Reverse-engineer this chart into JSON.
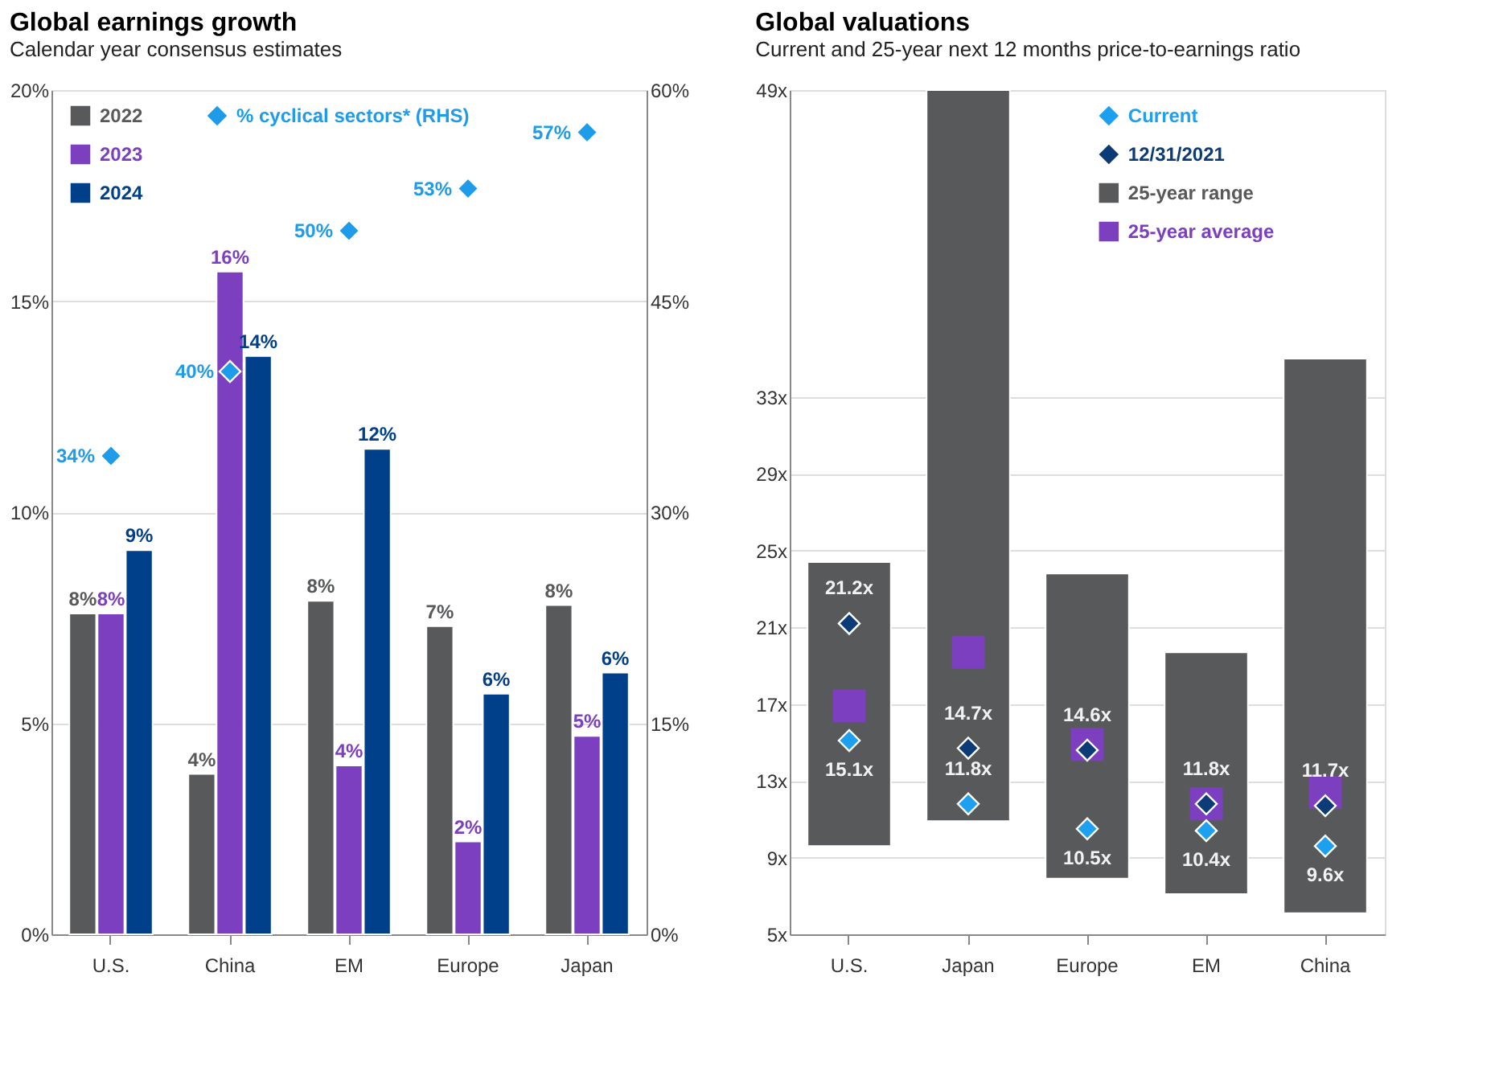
{
  "chart_data": [
    {
      "type": "bar",
      "title": "Global earnings growth",
      "subtitle": "Calendar year consensus estimates",
      "categories": [
        "U.S.",
        "China",
        "EM",
        "Europe",
        "Japan"
      ],
      "series": [
        {
          "name": "2022",
          "color": "#58595b",
          "values": [
            7.6,
            3.8,
            7.9,
            7.3,
            7.8
          ],
          "value_labels": [
            "8%",
            "4%",
            "8%",
            "7%",
            "8%"
          ]
        },
        {
          "name": "2023",
          "color": "#7b3fbf",
          "values": [
            7.6,
            15.7,
            4.0,
            2.2,
            4.7
          ],
          "value_labels": [
            "8%",
            "16%",
            "4%",
            "2%",
            "5%"
          ]
        },
        {
          "name": "2024",
          "color": "#003f8a",
          "values": [
            9.1,
            13.7,
            11.5,
            5.7,
            6.2
          ],
          "value_labels": [
            "9%",
            "14%",
            "12%",
            "6%",
            "6%"
          ]
        },
        {
          "name": "% cyclical sectors* (RHS)",
          "type": "scatter",
          "marker": "diamond",
          "axis": "y2",
          "color": "#1e9be9",
          "values": [
            34,
            40,
            50,
            53,
            57
          ],
          "value_labels": [
            "34%",
            "40%",
            "50%",
            "53%",
            "57%"
          ]
        }
      ],
      "ylim": [
        0,
        20
      ],
      "yticks": [
        {
          "value": 0,
          "label": "0%"
        },
        {
          "value": 5,
          "label": "5%"
        },
        {
          "value": 10,
          "label": "10%"
        },
        {
          "value": 15,
          "label": "15%"
        },
        {
          "value": 20,
          "label": "20%"
        }
      ],
      "y2lim": [
        0,
        60
      ],
      "y2ticks": [
        {
          "value": 0,
          "label": "0%"
        },
        {
          "value": 15,
          "label": "15%"
        },
        {
          "value": 30,
          "label": "30%"
        },
        {
          "value": 45,
          "label": "45%"
        },
        {
          "value": 60,
          "label": "60%"
        }
      ],
      "grid": "y",
      "legend": "top left"
    },
    {
      "type": "bar",
      "title": "Global valuations",
      "subtitle": "Current and 25-year next 12 months price-to-earnings ratio",
      "categories": [
        "U.S.",
        "Japan",
        "Europe",
        "EM",
        "China"
      ],
      "series": [
        {
          "name": "Current",
          "type": "scatter",
          "marker": "diamond",
          "color": "#1ea0f0",
          "values": [
            15.1,
            11.8,
            10.5,
            10.4,
            9.6
          ],
          "value_labels": [
            "15.1x",
            "11.8x",
            "10.5x",
            "10.4x",
            "9.6x"
          ]
        },
        {
          "name": "12/31/2021",
          "type": "scatter",
          "marker": "diamond",
          "color": "#0c3c78",
          "values": [
            21.2,
            14.7,
            14.6,
            11.8,
            11.7
          ],
          "value_labels": [
            "21.2x",
            "14.7x",
            "14.6x",
            "11.8x",
            "11.7x"
          ]
        },
        {
          "name": "25-year range",
          "color": "#58595b",
          "base": [
            9.6,
            10.9,
            7.9,
            7.1,
            6.1
          ],
          "values": [
            14.8,
            38.1,
            15.9,
            12.6,
            28.9
          ]
        },
        {
          "name": "25-year average",
          "type": "scatter",
          "marker": "square",
          "color": "#7b3fbf",
          "values": [
            16.9,
            19.7,
            14.9,
            11.8,
            12.4
          ]
        }
      ],
      "ylim": [
        5,
        49
      ],
      "yticks": [
        {
          "value": 5,
          "label": "5x"
        },
        {
          "value": 9,
          "label": "9x"
        },
        {
          "value": 13,
          "label": "13x"
        },
        {
          "value": 17,
          "label": "17x"
        },
        {
          "value": 21,
          "label": "21x"
        },
        {
          "value": 25,
          "label": "25x"
        },
        {
          "value": 29,
          "label": "29x"
        },
        {
          "value": 33,
          "label": "33x"
        },
        {
          "value": 49,
          "label": "49x"
        }
      ],
      "grid": "y",
      "legend": "top"
    }
  ]
}
